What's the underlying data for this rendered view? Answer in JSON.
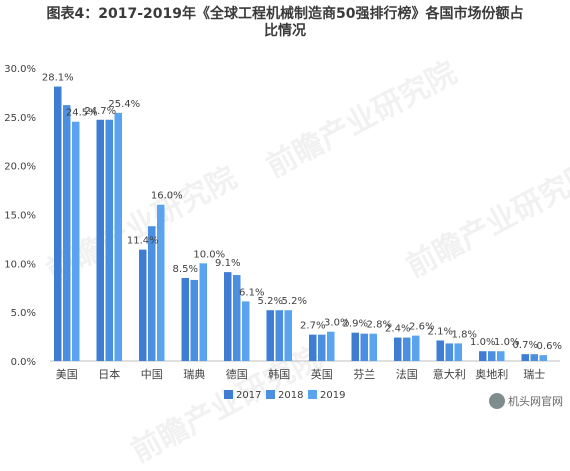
{
  "title": "图表4：2017-2019年《全球工程机械制造商50强排行榜》各国市场份额占\n比情况",
  "watermark": "前瞻产业研究院",
  "badge": "机头网官网",
  "colors": {
    "series_2017": "#3f7dd3",
    "series_2018": "#4b8fe0",
    "series_2019": "#5aa4ef",
    "axis": "#bfbfbf",
    "text": "#404040"
  },
  "chart_data": {
    "type": "bar",
    "title": "图表4：2017-2019年《全球工程机械制造商50强排行榜》各国市场份额占比情况",
    "categories": [
      "美国",
      "日本",
      "中国",
      "瑞典",
      "德国",
      "韩国",
      "英国",
      "芬兰",
      "法国",
      "意大利",
      "奥地利",
      "瑞士"
    ],
    "series": [
      {
        "name": "2017",
        "values": [
          28.1,
          24.7,
          11.4,
          8.5,
          9.1,
          5.2,
          2.7,
          2.9,
          2.4,
          2.1,
          1.0,
          0.7
        ]
      },
      {
        "name": "2018",
        "values": [
          26.2,
          24.7,
          13.8,
          8.3,
          8.8,
          5.2,
          2.7,
          2.8,
          2.4,
          1.8,
          1.0,
          0.7
        ]
      },
      {
        "name": "2019",
        "values": [
          24.5,
          25.4,
          16.0,
          10.0,
          6.1,
          5.2,
          3.0,
          2.8,
          2.6,
          1.8,
          1.0,
          0.6
        ]
      }
    ],
    "data_labels": [
      {
        "category": "美国",
        "labels": [
          "28.1%",
          "24.5%"
        ],
        "positions": [
          "2017",
          "2019"
        ]
      },
      {
        "category": "日本",
        "labels": [
          "24.7%",
          "25.4%"
        ],
        "positions": [
          "2017",
          "2019"
        ]
      },
      {
        "category": "中国",
        "labels": [
          "11.4%",
          "16.0%"
        ],
        "positions": [
          "2017",
          "2019"
        ]
      },
      {
        "category": "瑞典",
        "labels": [
          "8.5%",
          "10.0%"
        ],
        "positions": [
          "2017",
          "2019"
        ]
      },
      {
        "category": "德国",
        "labels": [
          "9.1%",
          "6.1%"
        ],
        "positions": [
          "2017",
          "2019"
        ]
      },
      {
        "category": "韩国",
        "labels": [
          "5.2%",
          "5.2%"
        ],
        "positions": [
          "2017",
          "2019"
        ]
      },
      {
        "category": "英国",
        "labels": [
          "2.7%",
          "3.0%"
        ],
        "positions": [
          "2017",
          "2019"
        ]
      },
      {
        "category": "芬兰",
        "labels": [
          "2.9%",
          "2.8%"
        ],
        "positions": [
          "2017",
          "2019"
        ]
      },
      {
        "category": "法国",
        "labels": [
          "2.4%",
          "2.6%"
        ],
        "positions": [
          "2017",
          "2019"
        ]
      },
      {
        "category": "意大利",
        "labels": [
          "2.1%",
          "1.8%"
        ],
        "positions": [
          "2017",
          "2019"
        ]
      },
      {
        "category": "奥地利",
        "labels": [
          "1.0%",
          "1.0%"
        ],
        "positions": [
          "2017",
          "2019"
        ]
      },
      {
        "category": "瑞士",
        "labels": [
          "0.7%",
          "0.6%"
        ],
        "positions": [
          "2017",
          "2019"
        ]
      }
    ],
    "ylim": [
      0,
      30
    ],
    "yticks": [
      "0.0%",
      "5.0%",
      "10.0%",
      "15.0%",
      "20.0%",
      "25.0%",
      "30.0%"
    ],
    "ytick_values": [
      0,
      5,
      10,
      15,
      20,
      25,
      30
    ],
    "grid": false,
    "legend": {
      "placement": "bottom-center",
      "entries": [
        "2017",
        "2018",
        "2019"
      ]
    }
  }
}
